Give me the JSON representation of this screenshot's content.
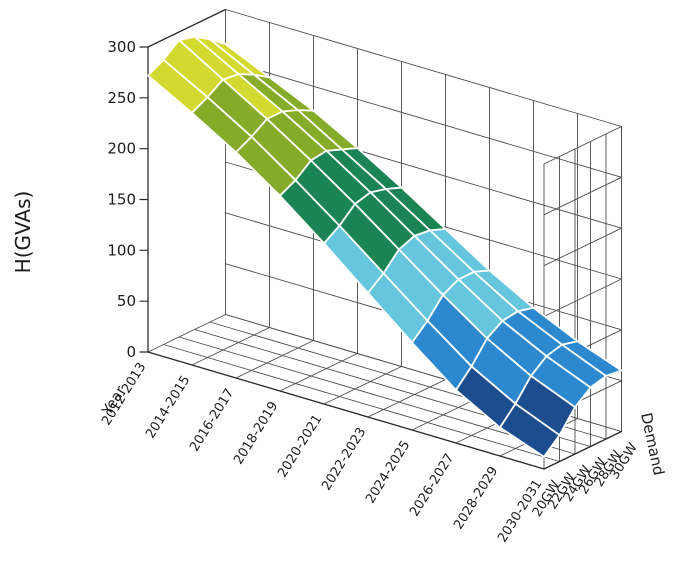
{
  "chart_data": {
    "type": "surface",
    "title": "",
    "zlabel": "H(GVAs)",
    "xlabel": "Year",
    "ylabel": "Demand",
    "x_categories": [
      "2012-2013",
      "2014-2015",
      "2016-2017",
      "2018-2019",
      "2020-2021",
      "2022-2023",
      "2024-2025",
      "2026-2027",
      "2028-2029",
      "2030-2031"
    ],
    "y_categories": [
      "20GW",
      "22GW",
      "24GW",
      "26GW",
      "28GW",
      "30GW"
    ],
    "zlim": [
      0,
      300
    ],
    "ztick_step": 50,
    "ztick_labels": [
      "0",
      "50",
      "100",
      "150",
      "200",
      "250",
      "300"
    ],
    "grid": true,
    "legend": "none",
    "surface_stroke": "#ffffff",
    "bands": [
      {
        "min": 0,
        "max": 50,
        "color": "#1c4d8f",
        "name": "0-50 dark blue"
      },
      {
        "min": 50,
        "max": 100,
        "color": "#2c88cf",
        "name": "50-100 blue"
      },
      {
        "min": 100,
        "max": 150,
        "color": "#66c6de",
        "name": "100-150 light cyan"
      },
      {
        "min": 150,
        "max": 200,
        "color": "#1b8454",
        "name": "150-200 green"
      },
      {
        "min": 200,
        "max": 250,
        "color": "#86ab28",
        "name": "200-250 olive green"
      },
      {
        "min": 250,
        "max": 301,
        "color": "#d4d92f",
        "name": "250-300 yellow-green"
      }
    ],
    "values_note": "values[yearIndex][demandIndex], demand order 20GW..30GW, H in GVAs (estimated from surface)",
    "values": [
      [
        272,
        280,
        292,
        288,
        278,
        266
      ],
      [
        248,
        256,
        266,
        264,
        256,
        246
      ],
      [
        222,
        230,
        240,
        240,
        234,
        226
      ],
      [
        192,
        200,
        212,
        214,
        208,
        202
      ],
      [
        158,
        168,
        182,
        186,
        182,
        176
      ],
      [
        122,
        134,
        150,
        156,
        154,
        148
      ],
      [
        86,
        100,
        118,
        126,
        126,
        120
      ],
      [
        52,
        68,
        88,
        98,
        100,
        96
      ],
      [
        28,
        44,
        64,
        76,
        80,
        76
      ],
      [
        12,
        26,
        46,
        58,
        62,
        60
      ]
    ]
  }
}
